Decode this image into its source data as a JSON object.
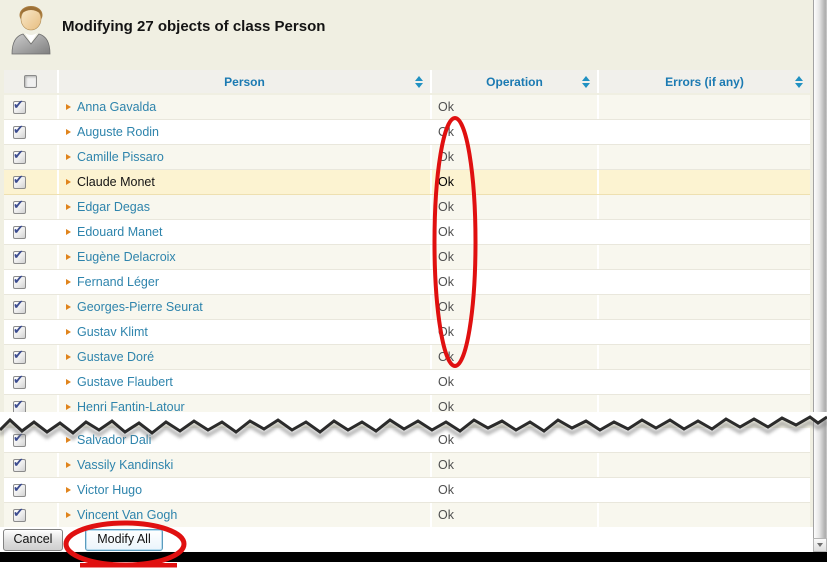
{
  "header": {
    "title": "Modifying 27 objects of class Person"
  },
  "table": {
    "select_all_checked": false,
    "columns": {
      "person": "Person",
      "operation": "Operation",
      "errors": "Errors (if any)"
    },
    "tear_after_index": 12,
    "rows": [
      {
        "person": "Anna Gavalda",
        "operation": "Ok",
        "errors": "",
        "checked": true,
        "highlighted": false
      },
      {
        "person": "Auguste Rodin",
        "operation": "Ok",
        "errors": "",
        "checked": true,
        "highlighted": false
      },
      {
        "person": "Camille Pissaro",
        "operation": "Ok",
        "errors": "",
        "checked": true,
        "highlighted": false
      },
      {
        "person": "Claude Monet",
        "operation": "Ok",
        "errors": "",
        "checked": true,
        "highlighted": true
      },
      {
        "person": "Edgar Degas",
        "operation": "Ok",
        "errors": "",
        "checked": true,
        "highlighted": false
      },
      {
        "person": "Edouard Manet",
        "operation": "Ok",
        "errors": "",
        "checked": true,
        "highlighted": false
      },
      {
        "person": "Eugène Delacroix",
        "operation": "Ok",
        "errors": "",
        "checked": true,
        "highlighted": false
      },
      {
        "person": "Fernand Léger",
        "operation": "Ok",
        "errors": "",
        "checked": true,
        "highlighted": false
      },
      {
        "person": "Georges-Pierre Seurat",
        "operation": "Ok",
        "errors": "",
        "checked": true,
        "highlighted": false
      },
      {
        "person": "Gustav Klimt",
        "operation": "Ok",
        "errors": "",
        "checked": true,
        "highlighted": false
      },
      {
        "person": "Gustave Doré",
        "operation": "Ok",
        "errors": "",
        "checked": true,
        "highlighted": false
      },
      {
        "person": "Gustave Flaubert",
        "operation": "Ok",
        "errors": "",
        "checked": true,
        "highlighted": false
      },
      {
        "person": "Henri Fantin-Latour",
        "operation": "Ok",
        "errors": "",
        "checked": true,
        "highlighted": false
      },
      {
        "person": "Salvador Dali",
        "operation": "Ok",
        "errors": "",
        "checked": true,
        "highlighted": false
      },
      {
        "person": "Vassily Kandinski",
        "operation": "Ok",
        "errors": "",
        "checked": true,
        "highlighted": false
      },
      {
        "person": "Victor Hugo",
        "operation": "Ok",
        "errors": "",
        "checked": true,
        "highlighted": false
      },
      {
        "person": "Vincent Van Gogh",
        "operation": "Ok",
        "errors": "",
        "checked": true,
        "highlighted": false
      }
    ]
  },
  "footer": {
    "cancel_label": "Cancel",
    "modify_all_label": "Modify All"
  },
  "annotations": {
    "color": "#e01010",
    "operation_column_circled": true,
    "modify_all_circled": true,
    "modify_all_underlined": true
  },
  "colors": {
    "header_text_blue": "#1b7ab2",
    "link_blue": "#2e84ac",
    "bullet_orange": "#e0841c",
    "row_alt_beige": "#f8f7ee",
    "row_highlight_yellow": "#fcf3d1",
    "annotation_red": "#e01010"
  }
}
